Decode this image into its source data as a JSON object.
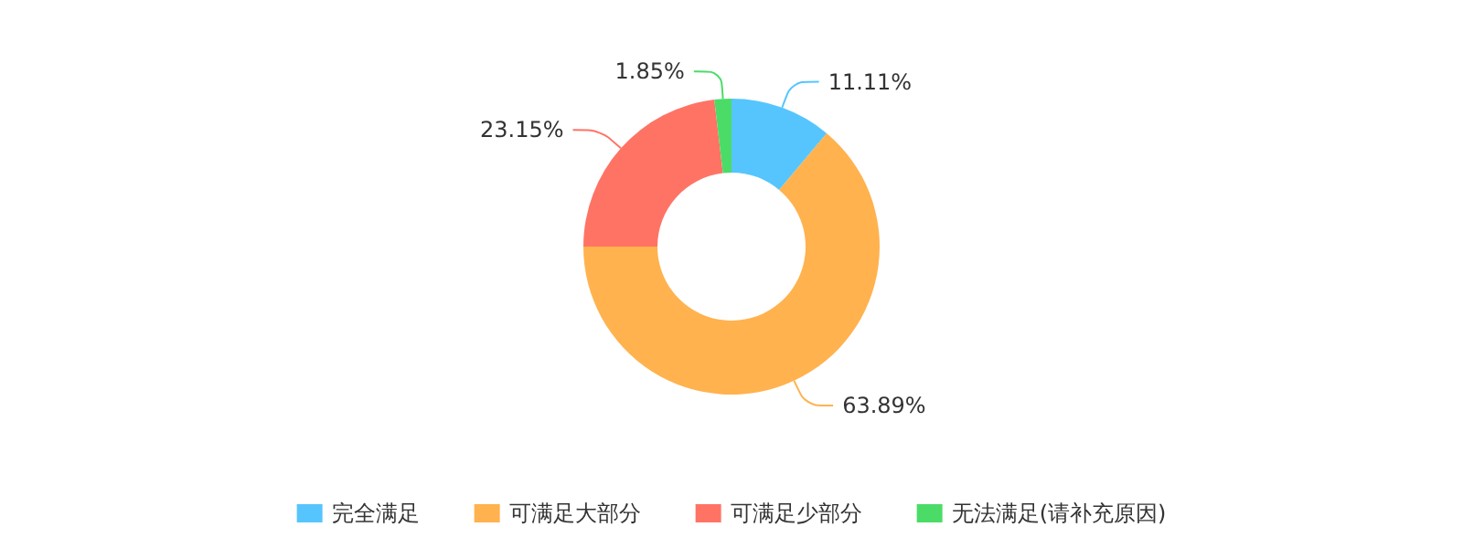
{
  "chart_data": {
    "type": "donut",
    "categories": [
      "完全满足",
      "可满足大部分",
      "可满足少部分",
      "无法满足(请补充原因)"
    ],
    "values": [
      11.11,
      63.89,
      23.15,
      1.85
    ],
    "value_labels": [
      "11.11%",
      "63.89%",
      "23.15%",
      "1.85%"
    ],
    "colors": [
      "#56c5fd",
      "#ffb24e",
      "#ff7365",
      "#4bdc67"
    ],
    "legend": "bottom"
  }
}
